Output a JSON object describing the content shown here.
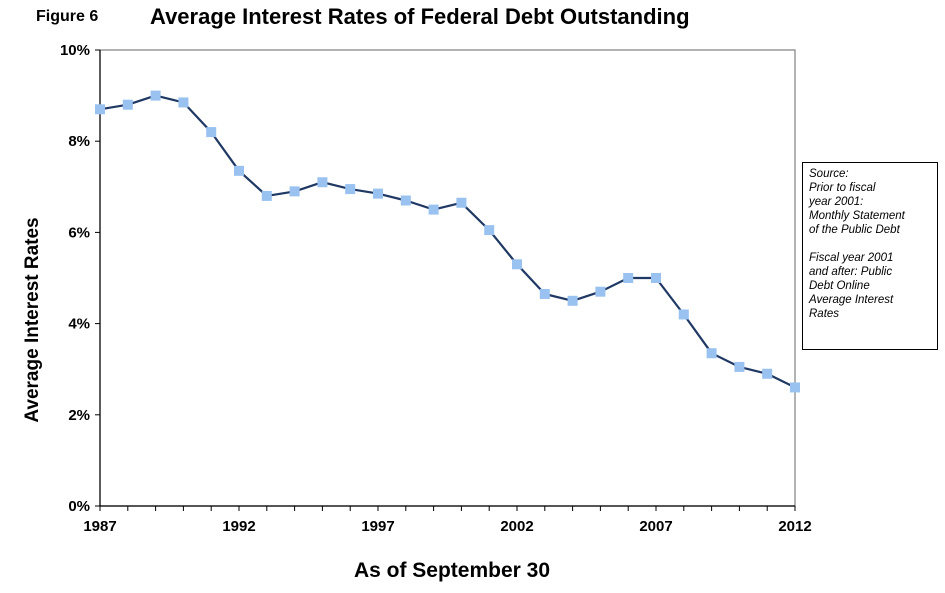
{
  "figure_label": "Figure 6",
  "chart_data": {
    "type": "line",
    "title": "Average Interest Rates of Federal Debt Outstanding",
    "xlabel": "As of September 30",
    "ylabel": "Average Interest Rates",
    "x": [
      1987,
      1988,
      1989,
      1990,
      1991,
      1992,
      1993,
      1994,
      1995,
      1996,
      1997,
      1998,
      1999,
      2000,
      2001,
      2002,
      2003,
      2004,
      2005,
      2006,
      2007,
      2008,
      2009,
      2010,
      2011,
      2012
    ],
    "series": [
      {
        "values": [
          8.7,
          8.8,
          9.0,
          8.85,
          8.2,
          7.35,
          6.8,
          6.9,
          7.1,
          6.95,
          6.85,
          6.7,
          6.5,
          6.65,
          6.05,
          5.3,
          4.65,
          4.5,
          4.7,
          5.0,
          5.0,
          4.2,
          3.35,
          3.05,
          2.9,
          2.6
        ]
      }
    ],
    "xlim": [
      1987,
      2012
    ],
    "ylim": [
      0,
      10
    ],
    "x_ticks": [
      "1987",
      "1992",
      "1997",
      "2002",
      "2007",
      "2012"
    ],
    "y_ticks": [
      "0%",
      "2%",
      "4%",
      "6%",
      "8%",
      "10%"
    ],
    "grid": false,
    "line_color": "#1f3864",
    "marker_color": "#99c2f0",
    "marker": "square"
  },
  "source_note": {
    "line1": "Source:\nPrior  to  fiscal\nyear 2001:\nMonthly Statement\nof the Public Debt",
    "line2": "Fiscal year 2001\nand after:   Public\nDebt Online\nAverage Interest\nRates"
  }
}
